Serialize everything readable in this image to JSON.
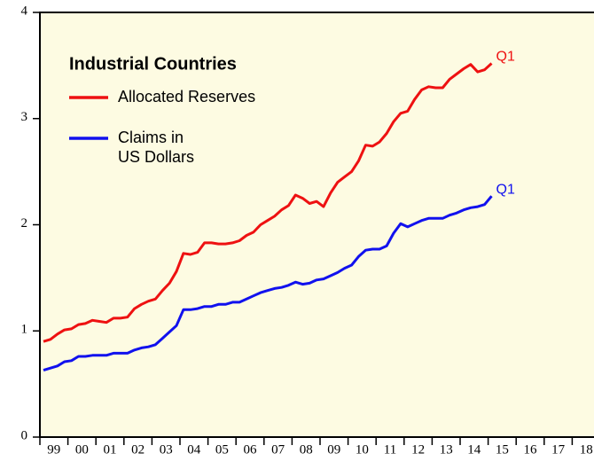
{
  "chart_data": {
    "type": "line",
    "title": "Industrial Countries",
    "x": [
      1999.125,
      1999.375,
      1999.625,
      1999.875,
      2000.125,
      2000.375,
      2000.625,
      2000.875,
      2001.125,
      2001.375,
      2001.625,
      2001.875,
      2002.125,
      2002.375,
      2002.625,
      2002.875,
      2003.125,
      2003.375,
      2003.625,
      2003.875,
      2004.125,
      2004.375,
      2004.625,
      2004.875,
      2005.125,
      2005.375,
      2005.625,
      2005.875,
      2006.125,
      2006.375,
      2006.625,
      2006.875,
      2007.125,
      2007.375,
      2007.625,
      2007.875,
      2008.125,
      2008.375,
      2008.625,
      2008.875,
      2009.125,
      2009.375,
      2009.625,
      2009.875,
      2010.125,
      2010.375,
      2010.625,
      2010.875,
      2011.125,
      2011.375,
      2011.625,
      2011.875,
      2012.125,
      2012.375,
      2012.625,
      2012.875,
      2013.125,
      2013.375,
      2013.625,
      2013.875,
      2014.125,
      2014.375,
      2014.625,
      2014.875,
      2015.125
    ],
    "series": [
      {
        "name": "Allocated Reserves",
        "color": "#ee1111",
        "end_label": "Q1",
        "values": [
          0.9,
          0.92,
          0.97,
          1.01,
          1.02,
          1.06,
          1.07,
          1.1,
          1.09,
          1.08,
          1.12,
          1.12,
          1.13,
          1.21,
          1.25,
          1.28,
          1.3,
          1.38,
          1.45,
          1.56,
          1.73,
          1.72,
          1.74,
          1.83,
          1.83,
          1.82,
          1.82,
          1.83,
          1.85,
          1.9,
          1.93,
          2.0,
          2.04,
          2.08,
          2.14,
          2.18,
          2.28,
          2.25,
          2.2,
          2.22,
          2.17,
          2.3,
          2.4,
          2.45,
          2.5,
          2.6,
          2.75,
          2.74,
          2.78,
          2.86,
          2.97,
          3.05,
          3.07,
          3.18,
          3.27,
          3.3,
          3.29,
          3.29,
          3.37,
          3.42,
          3.47,
          3.51,
          3.44,
          3.46,
          3.52
        ]
      },
      {
        "name": "Claims in\nUS Dollars",
        "color": "#1111ee",
        "end_label": "Q1",
        "values": [
          0.63,
          0.65,
          0.67,
          0.71,
          0.72,
          0.76,
          0.76,
          0.77,
          0.77,
          0.77,
          0.79,
          0.79,
          0.79,
          0.82,
          0.84,
          0.85,
          0.87,
          0.93,
          0.99,
          1.05,
          1.2,
          1.2,
          1.21,
          1.23,
          1.23,
          1.25,
          1.25,
          1.27,
          1.27,
          1.3,
          1.33,
          1.36,
          1.38,
          1.4,
          1.41,
          1.43,
          1.46,
          1.44,
          1.45,
          1.48,
          1.49,
          1.52,
          1.55,
          1.59,
          1.62,
          1.7,
          1.76,
          1.77,
          1.77,
          1.8,
          1.92,
          2.01,
          1.98,
          2.01,
          2.04,
          2.06,
          2.06,
          2.06,
          2.09,
          2.11,
          2.14,
          2.16,
          2.17,
          2.19,
          2.27
        ]
      }
    ],
    "xlim": [
      1999,
      2019
    ],
    "xticks": [
      {
        "value": 1999,
        "label": "99"
      },
      {
        "value": 2000,
        "label": "00"
      },
      {
        "value": 2001,
        "label": "01"
      },
      {
        "value": 2002,
        "label": "02"
      },
      {
        "value": 2003,
        "label": "03"
      },
      {
        "value": 2004,
        "label": "04"
      },
      {
        "value": 2005,
        "label": "05"
      },
      {
        "value": 2006,
        "label": "06"
      },
      {
        "value": 2007,
        "label": "07"
      },
      {
        "value": 2008,
        "label": "08"
      },
      {
        "value": 2009,
        "label": "09"
      },
      {
        "value": 2010,
        "label": "10"
      },
      {
        "value": 2011,
        "label": "11"
      },
      {
        "value": 2012,
        "label": "12"
      },
      {
        "value": 2013,
        "label": "13"
      },
      {
        "value": 2014,
        "label": "14"
      },
      {
        "value": 2015,
        "label": "15"
      },
      {
        "value": 2016,
        "label": "16"
      },
      {
        "value": 2017,
        "label": "17"
      },
      {
        "value": 2018,
        "label": "18"
      }
    ],
    "ylim": [
      0,
      4
    ],
    "yticks": [
      0,
      1,
      2,
      3,
      4
    ],
    "background": "#fdfbe2"
  }
}
